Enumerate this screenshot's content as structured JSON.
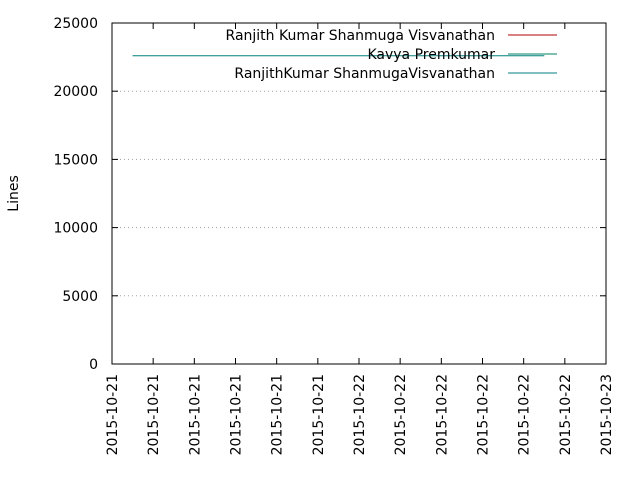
{
  "chart_data": {
    "type": "line",
    "title": "",
    "xlabel": "",
    "ylabel": "Lines",
    "ylim": [
      0,
      25000
    ],
    "yticks": [
      0,
      5000,
      10000,
      15000,
      20000,
      25000
    ],
    "xlim": [
      "2015-10-21T00:00",
      "2015-10-23T00:00"
    ],
    "xtick_labels": [
      "2015-10-21",
      "2015-10-21",
      "2015-10-21",
      "2015-10-21",
      "2015-10-21",
      "2015-10-21",
      "2015-10-22",
      "2015-10-22",
      "2015-10-22",
      "2015-10-22",
      "2015-10-22",
      "2015-10-22",
      "2015-10-23"
    ],
    "grid": true,
    "legend": "top-right",
    "series": [
      {
        "name": "Ranjith Kumar Shanmuga Visvanathan",
        "color": "#b30000",
        "x": [],
        "y": []
      },
      {
        "name": "Kavya Premkumar",
        "color": "#008060",
        "x": [
          "2015-10-22T12:00",
          "2015-10-22T12:00"
        ],
        "y": [
          22600,
          22600
        ]
      },
      {
        "name": "RanjithKumar ShanmugaVisvanathan",
        "color": "#008080",
        "x": [
          "2015-10-21T02:00",
          "2015-10-22T18:00"
        ],
        "y": [
          22600,
          22600
        ]
      }
    ]
  }
}
